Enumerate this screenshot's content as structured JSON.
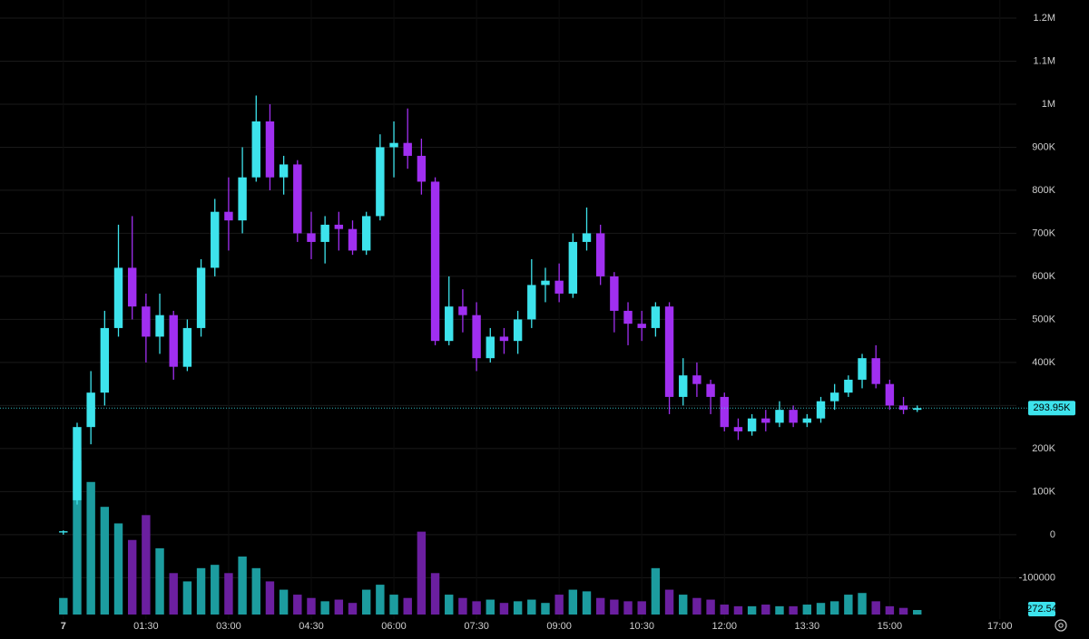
{
  "chart_data": {
    "type": "candlestick",
    "x": [
      0,
      15,
      30,
      45,
      60,
      75,
      90,
      105,
      120,
      135,
      150,
      165,
      180,
      195,
      210,
      225,
      240,
      255,
      270,
      285,
      300,
      315,
      330,
      345,
      360,
      375,
      390,
      405,
      420,
      435,
      450,
      465,
      480,
      495,
      510,
      525,
      540,
      555,
      570,
      585,
      600,
      615,
      630,
      645,
      660,
      675,
      690,
      705,
      720,
      735,
      750,
      765,
      780,
      795,
      810,
      825,
      840,
      855,
      870,
      885,
      900,
      915,
      930
    ],
    "open": [
      5000,
      80000,
      250000,
      330000,
      480000,
      620000,
      530000,
      460000,
      510000,
      390000,
      480000,
      620000,
      750000,
      730000,
      830000,
      960000,
      830000,
      860000,
      700000,
      680000,
      720000,
      710000,
      660000,
      740000,
      900000,
      910000,
      880000,
      820000,
      450000,
      530000,
      510000,
      410000,
      460000,
      450000,
      500000,
      580000,
      590000,
      560000,
      680000,
      700000,
      600000,
      520000,
      490000,
      480000,
      530000,
      320000,
      370000,
      350000,
      320000,
      250000,
      240000,
      270000,
      260000,
      290000,
      260000,
      270000,
      310000,
      330000,
      360000,
      410000,
      350000,
      300000,
      290000
    ],
    "high": [
      10000,
      260000,
      380000,
      520000,
      720000,
      740000,
      560000,
      560000,
      520000,
      500000,
      640000,
      780000,
      830000,
      900000,
      1020000,
      1000000,
      880000,
      870000,
      750000,
      740000,
      750000,
      730000,
      750000,
      930000,
      960000,
      990000,
      920000,
      830000,
      600000,
      570000,
      540000,
      480000,
      480000,
      520000,
      640000,
      620000,
      630000,
      700000,
      760000,
      720000,
      610000,
      540000,
      520000,
      540000,
      540000,
      410000,
      400000,
      360000,
      330000,
      270000,
      280000,
      290000,
      310000,
      300000,
      280000,
      320000,
      350000,
      370000,
      420000,
      440000,
      360000,
      320000,
      300000
    ],
    "low": [
      0,
      70000,
      210000,
      300000,
      460000,
      500000,
      400000,
      420000,
      360000,
      380000,
      460000,
      600000,
      660000,
      700000,
      820000,
      800000,
      790000,
      680000,
      640000,
      630000,
      660000,
      650000,
      650000,
      730000,
      830000,
      850000,
      790000,
      440000,
      440000,
      470000,
      380000,
      400000,
      420000,
      420000,
      480000,
      540000,
      540000,
      550000,
      660000,
      580000,
      470000,
      440000,
      450000,
      460000,
      280000,
      300000,
      320000,
      280000,
      240000,
      220000,
      230000,
      240000,
      250000,
      250000,
      250000,
      260000,
      290000,
      320000,
      340000,
      340000,
      290000,
      280000,
      285000
    ],
    "close": [
      8000,
      250000,
      330000,
      480000,
      620000,
      530000,
      460000,
      510000,
      390000,
      480000,
      620000,
      750000,
      730000,
      830000,
      960000,
      830000,
      860000,
      700000,
      680000,
      720000,
      710000,
      660000,
      740000,
      900000,
      910000,
      880000,
      820000,
      450000,
      530000,
      510000,
      410000,
      460000,
      450000,
      500000,
      580000,
      590000,
      560000,
      680000,
      700000,
      600000,
      520000,
      490000,
      480000,
      530000,
      320000,
      370000,
      350000,
      320000,
      250000,
      240000,
      270000,
      260000,
      290000,
      260000,
      270000,
      310000,
      330000,
      360000,
      410000,
      350000,
      300000,
      290000,
      293950
    ],
    "volume": [
      1000,
      9300,
      8000,
      6500,
      5500,
      4500,
      6000,
      4000,
      2500,
      2000,
      2800,
      3000,
      2500,
      3500,
      2800,
      2000,
      1500,
      1200,
      1000,
      800,
      900,
      700,
      1500,
      1800,
      1200,
      1000,
      5000,
      2500,
      1200,
      1000,
      800,
      900,
      700,
      800,
      900,
      700,
      1200,
      1500,
      1400,
      1000,
      900,
      800,
      800,
      2800,
      1500,
      1200,
      1000,
      900,
      600,
      500,
      500,
      600,
      500,
      500,
      600,
      700,
      800,
      1200,
      1300,
      800,
      500,
      400,
      272.54
    ],
    "up_color": "#3de3ec",
    "down_color": "#a02ff0",
    "volume_up_color": "#1c9c9f",
    "volume_down_color": "#6b1fa0",
    "last_price": {
      "value": 293950,
      "label": "293.95K"
    },
    "xlim": [
      -69,
      1038
    ],
    "xticks": [
      {
        "value": 0,
        "label": "7"
      },
      {
        "value": 90,
        "label": "01:30"
      },
      {
        "value": 180,
        "label": "03:00"
      },
      {
        "value": 270,
        "label": "04:30"
      },
      {
        "value": 360,
        "label": "06:00"
      },
      {
        "value": 450,
        "label": "07:30"
      },
      {
        "value": 540,
        "label": "09:00"
      },
      {
        "value": 630,
        "label": "10:30"
      },
      {
        "value": 720,
        "label": "12:00"
      },
      {
        "value": 810,
        "label": "13:30"
      },
      {
        "value": 900,
        "label": "15:00"
      },
      {
        "value": 1020,
        "label": "17:00"
      }
    ],
    "ylim": [
      -196000,
      1242000
    ],
    "yticks": [
      {
        "value": 1200000,
        "label": "1.2M"
      },
      {
        "value": 1100000,
        "label": "1.1M"
      },
      {
        "value": 1000000,
        "label": "1M"
      },
      {
        "value": 900000,
        "label": "900K"
      },
      {
        "value": 800000,
        "label": "800K"
      },
      {
        "value": 700000,
        "label": "700K"
      },
      {
        "value": 600000,
        "label": "600K"
      },
      {
        "value": 500000,
        "label": "500K"
      },
      {
        "value": 400000,
        "label": "400K"
      },
      {
        "value": 300000,
        "label": "300K"
      },
      {
        "value": 200000,
        "label": "200K"
      },
      {
        "value": 100000,
        "label": "100K"
      },
      0,
      -100000
    ],
    "grid": true
  }
}
